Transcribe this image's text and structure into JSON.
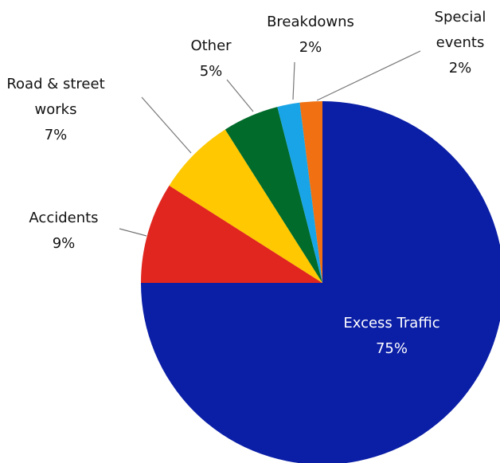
{
  "chart_data": {
    "type": "pie",
    "categories": [
      "Excess Traffic",
      "Accidents",
      "Road & street works",
      "Other",
      "Breakdowns",
      "Special events"
    ],
    "values": [
      75,
      9,
      7,
      5,
      2,
      2
    ],
    "value_labels": [
      "75%",
      "9%",
      "7%",
      "5%",
      "2%",
      "2%"
    ],
    "colors": [
      "#0a1ea6",
      "#e0261e",
      "#ffc800",
      "#006b2a",
      "#18a4e6",
      "#f07012"
    ]
  }
}
